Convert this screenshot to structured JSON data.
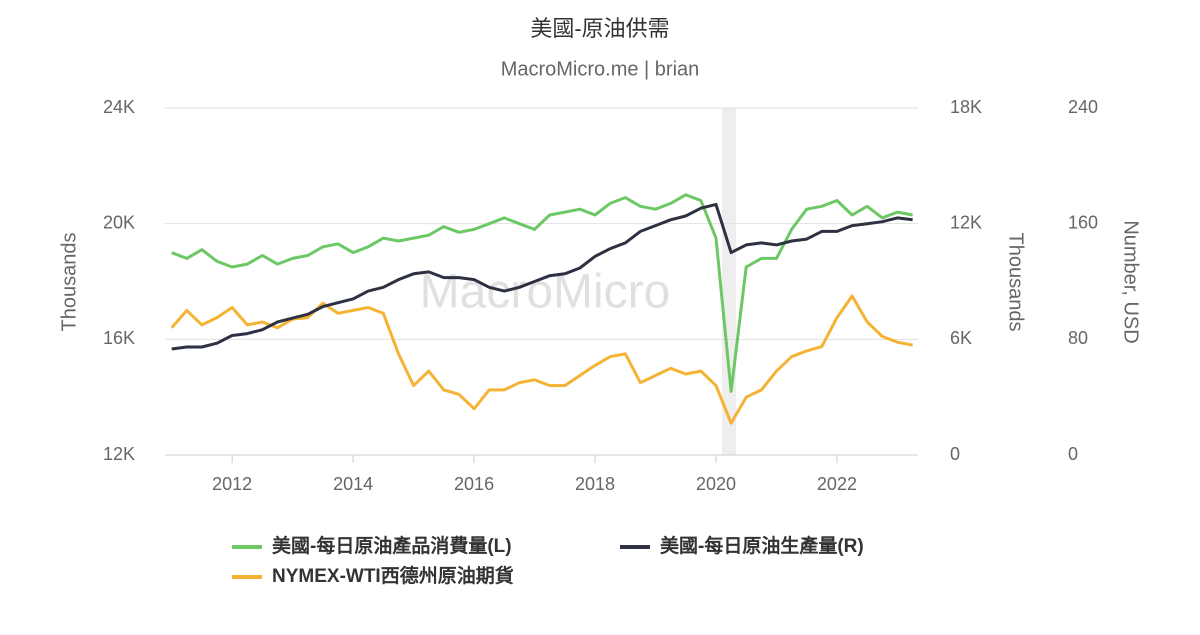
{
  "chart_data": {
    "type": "line",
    "title": "美國-原油供需",
    "subtitle": "MacroMicro.me | brian",
    "watermark": "MacroMicro",
    "y_label": "Thousands",
    "y2_label": "Thousands",
    "y3_label": "Number, USD",
    "x": [
      2011.0,
      2011.25,
      2011.5,
      2011.75,
      2012.0,
      2012.25,
      2012.5,
      2012.75,
      2013.0,
      2013.25,
      2013.5,
      2013.75,
      2014.0,
      2014.25,
      2014.5,
      2014.75,
      2015.0,
      2015.25,
      2015.5,
      2015.75,
      2016.0,
      2016.25,
      2016.5,
      2016.75,
      2017.0,
      2017.25,
      2017.5,
      2017.75,
      2018.0,
      2018.25,
      2018.5,
      2018.75,
      2019.0,
      2019.25,
      2019.5,
      2019.75,
      2020.0,
      2020.25,
      2020.5,
      2020.75,
      2021.0,
      2021.25,
      2021.5,
      2021.75,
      2022.0,
      2022.25,
      2022.5,
      2022.75,
      2023.0,
      2023.25
    ],
    "xlim": [
      2010.89,
      2023.34
    ],
    "xticks": [
      2012,
      2014,
      2016,
      2018,
      2020,
      2022
    ],
    "shaded_x": [
      2020.1,
      2020.33
    ],
    "ylim": [
      12000,
      24000
    ],
    "yticks": [
      {
        "value": 12000,
        "label": "12K"
      },
      {
        "value": 16000,
        "label": "16K"
      },
      {
        "value": 20000,
        "label": "20K"
      },
      {
        "value": 24000,
        "label": "24K"
      }
    ],
    "y2lim": [
      0,
      18000
    ],
    "y2ticks": [
      0,
      {
        "value": 6000,
        "label": "6K"
      },
      {
        "value": 12000,
        "label": "12K"
      },
      {
        "value": 18000,
        "label": "18K"
      }
    ],
    "y3lim": [
      0,
      240
    ],
    "y3ticks": [
      0,
      80,
      160,
      240
    ],
    "grid": true,
    "legend": "bottom",
    "series": [
      {
        "name": "美國-每日原油產品消費量(L)",
        "color": "#6cc864",
        "axis": "y",
        "values": [
          19000,
          18800,
          19100,
          18700,
          18500,
          18600,
          18900,
          18600,
          18800,
          18900,
          19200,
          19300,
          19000,
          19200,
          19500,
          19400,
          19500,
          19600,
          19900,
          19700,
          19800,
          20000,
          20200,
          20000,
          19800,
          20300,
          20400,
          20500,
          20300,
          20700,
          20900,
          20600,
          20500,
          20700,
          21000,
          20800,
          19500,
          14200,
          18500,
          18800,
          18800,
          19800,
          20500,
          20600,
          20800,
          20300,
          20600,
          20200,
          20400,
          20300
        ]
      },
      {
        "name": "美國-每日原油生產量(R)",
        "color": "#2d3142",
        "axis": "y2",
        "values": [
          5500,
          5600,
          5600,
          5800,
          6200,
          6300,
          6500,
          6900,
          7100,
          7300,
          7700,
          7900,
          8100,
          8500,
          8700,
          9100,
          9400,
          9500,
          9200,
          9200,
          9100,
          8700,
          8500,
          8700,
          9000,
          9300,
          9400,
          9700,
          10300,
          10700,
          11000,
          11600,
          11900,
          12200,
          12400,
          12800,
          13000,
          10500,
          10900,
          11000,
          10900,
          11100,
          11200,
          11600,
          11600,
          11900,
          12000,
          12100,
          12300,
          12200
        ]
      },
      {
        "name": "NYMEX-WTI西德州原油期貨",
        "color": "#f5b335",
        "axis": "y3",
        "values": [
          88,
          100,
          90,
          95,
          102,
          90,
          92,
          88,
          94,
          95,
          105,
          98,
          100,
          102,
          98,
          70,
          48,
          58,
          45,
          42,
          32,
          45,
          45,
          50,
          52,
          48,
          48,
          55,
          62,
          68,
          70,
          50,
          55,
          60,
          56,
          58,
          48,
          22,
          40,
          45,
          58,
          68,
          72,
          75,
          95,
          110,
          92,
          82,
          78,
          76
        ]
      }
    ]
  }
}
